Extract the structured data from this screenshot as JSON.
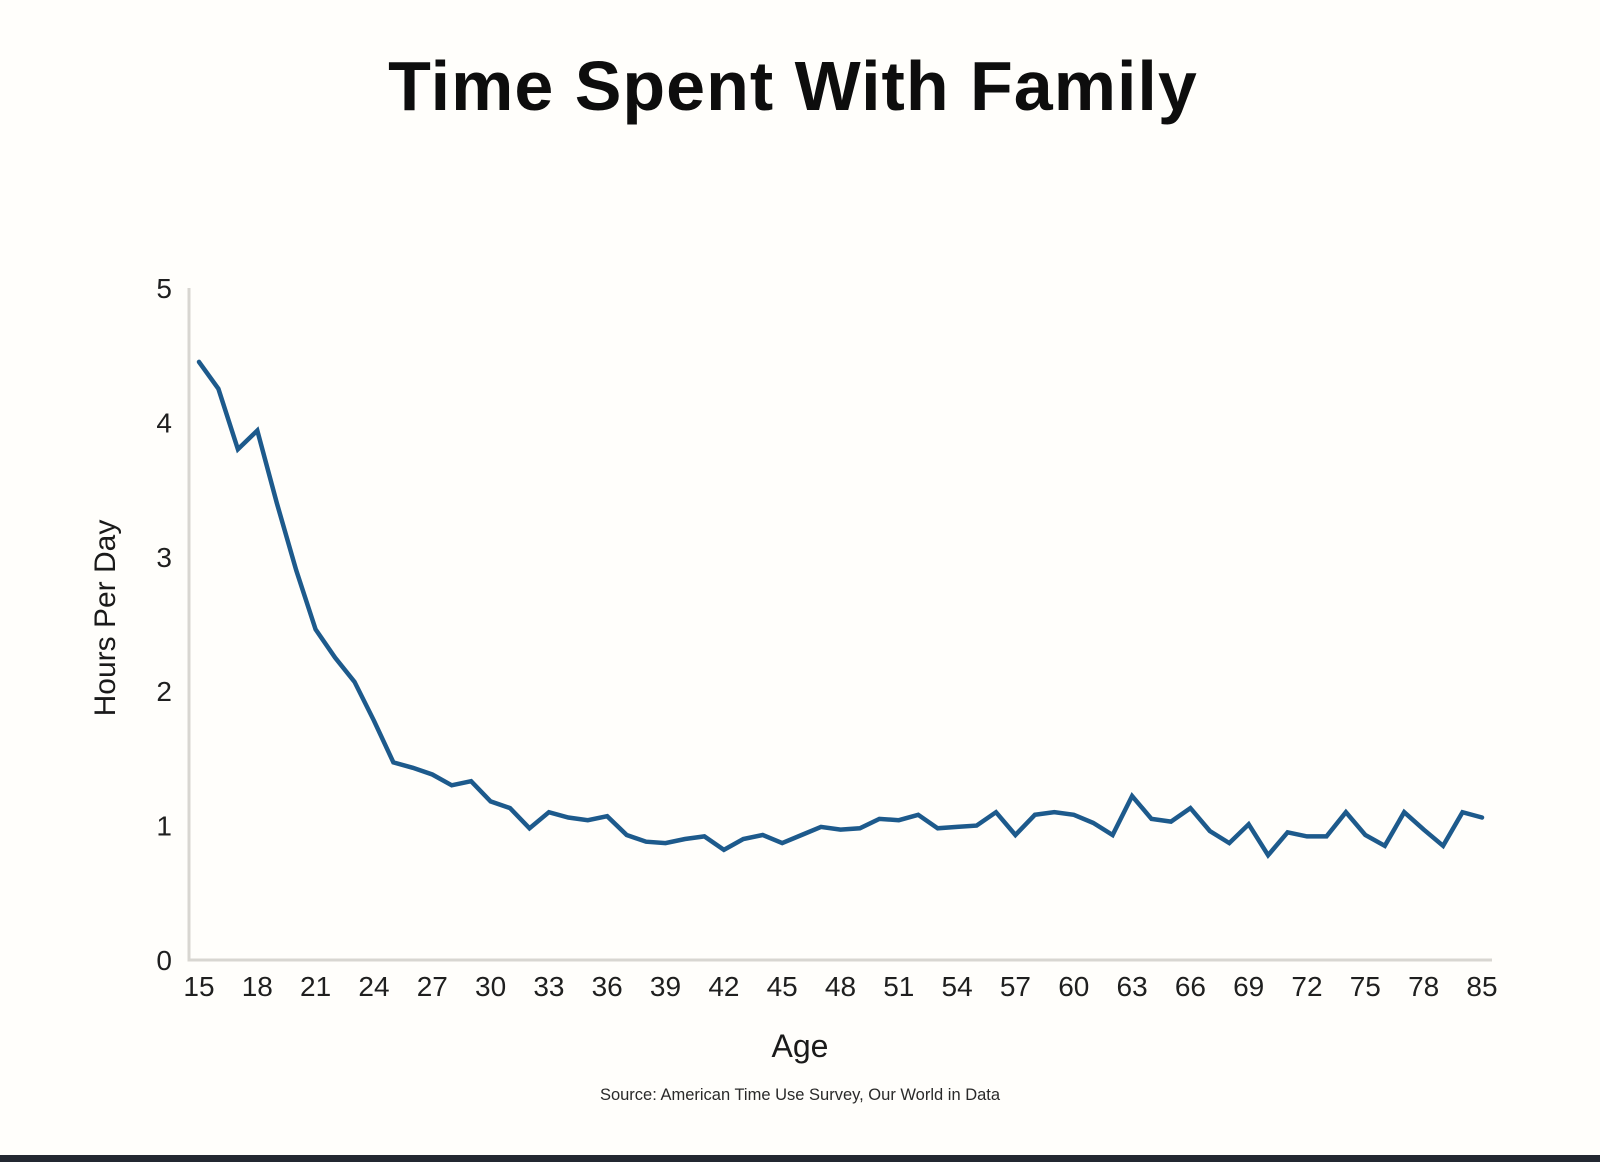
{
  "page": {
    "title": "Time Spent With Family",
    "x_axis_title": "Age",
    "y_axis_title": "Hours Per Day",
    "source_note": "Source: American Time Use Survey, Our World in Data"
  },
  "chart_data": {
    "type": "line",
    "title": "Time Spent With Family",
    "xlabel": "Age",
    "ylabel": "Hours Per Day",
    "source": "Source: American Time Use Survey, Our World in Data",
    "x": [
      15,
      16,
      17,
      18,
      19,
      20,
      21,
      22,
      23,
      24,
      25,
      26,
      27,
      28,
      29,
      30,
      31,
      32,
      33,
      34,
      35,
      36,
      37,
      38,
      39,
      40,
      41,
      42,
      43,
      44,
      45,
      46,
      47,
      48,
      49,
      50,
      51,
      52,
      53,
      54,
      55,
      56,
      57,
      58,
      59,
      60,
      61,
      62,
      63,
      64,
      65,
      66,
      67,
      68,
      69,
      70,
      71,
      72,
      73,
      74,
      75,
      76,
      77,
      78,
      79,
      80,
      85
    ],
    "values": [
      4.45,
      4.25,
      3.8,
      3.94,
      3.4,
      2.9,
      2.46,
      2.25,
      2.07,
      1.78,
      1.47,
      1.43,
      1.38,
      1.3,
      1.33,
      1.18,
      1.13,
      0.98,
      1.1,
      1.06,
      1.04,
      1.07,
      0.93,
      0.88,
      0.87,
      0.9,
      0.92,
      0.82,
      0.9,
      0.93,
      0.87,
      0.93,
      0.99,
      0.97,
      0.98,
      1.05,
      1.04,
      1.08,
      0.98,
      0.99,
      1.0,
      1.1,
      0.93,
      1.08,
      1.1,
      1.08,
      1.02,
      0.93,
      1.22,
      1.05,
      1.03,
      1.13,
      0.96,
      0.87,
      1.01,
      0.78,
      0.95,
      0.92,
      0.92,
      1.1,
      0.93,
      0.85,
      1.1,
      0.97,
      0.85,
      1.1,
      1.06
    ],
    "xticks": [
      15,
      18,
      21,
      24,
      27,
      30,
      33,
      36,
      39,
      42,
      45,
      48,
      51,
      54,
      57,
      60,
      63,
      66,
      69,
      72,
      75,
      78,
      85
    ],
    "yticks": [
      0,
      1,
      2,
      3,
      4,
      5
    ],
    "ylim": [
      0,
      5
    ],
    "grid": false,
    "legend_position": "none",
    "line_color": "#1d5a8c",
    "axis_color": "#d8d6d1"
  }
}
